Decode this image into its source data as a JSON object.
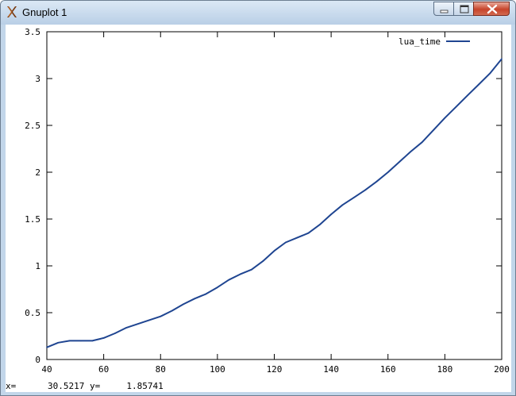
{
  "window": {
    "title": "Gnuplot 1",
    "icon": "x-window-icon"
  },
  "status": {
    "x_label": "x=",
    "x_value": "30.5217",
    "y_label": "y=",
    "y_value": "1.85741"
  },
  "colors": {
    "series": "#1f4591",
    "titlebar": "#c2d6ea",
    "close_button": "#c7442b"
  },
  "chart_data": {
    "type": "line",
    "title": "",
    "xlabel": "",
    "ylabel": "",
    "xlim": [
      40,
      200
    ],
    "ylim": [
      0,
      3.5
    ],
    "xticks": [
      40,
      60,
      80,
      100,
      120,
      140,
      160,
      180,
      200
    ],
    "yticks": [
      0,
      0.5,
      1,
      1.5,
      2,
      2.5,
      3,
      3.5
    ],
    "xtick_labels": [
      "40",
      "60",
      "80",
      "100",
      "120",
      "140",
      "160",
      "180",
      "200"
    ],
    "ytick_labels": [
      "0",
      "0.5",
      "1",
      "1.5",
      "2",
      "2.5",
      "3",
      "3.5"
    ],
    "grid": false,
    "legend_position": "top-right",
    "series": [
      {
        "name": "lua_time",
        "color": "#1f4591",
        "x": [
          40,
          44,
          48,
          52,
          56,
          60,
          64,
          68,
          72,
          76,
          80,
          84,
          88,
          92,
          96,
          100,
          104,
          108,
          112,
          116,
          120,
          124,
          128,
          132,
          136,
          140,
          144,
          148,
          152,
          156,
          160,
          164,
          168,
          172,
          176,
          180,
          184,
          188,
          192,
          196,
          200
        ],
        "y": [
          0.13,
          0.18,
          0.2,
          0.2,
          0.2,
          0.23,
          0.28,
          0.34,
          0.38,
          0.42,
          0.46,
          0.52,
          0.59,
          0.65,
          0.7,
          0.77,
          0.85,
          0.91,
          0.96,
          1.05,
          1.16,
          1.25,
          1.3,
          1.35,
          1.44,
          1.55,
          1.65,
          1.73,
          1.81,
          1.9,
          2.0,
          2.11,
          2.22,
          2.32,
          2.45,
          2.58,
          2.7,
          2.82,
          2.94,
          3.06,
          3.21
        ]
      }
    ]
  }
}
